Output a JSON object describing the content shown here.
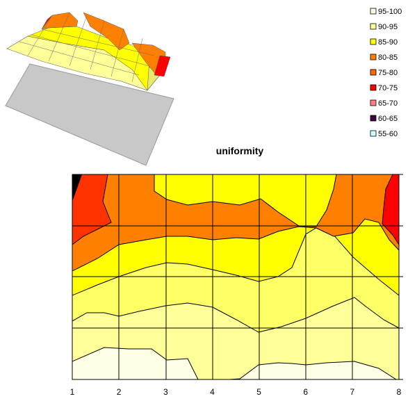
{
  "chart_data": [
    {
      "type": "surface",
      "title": "",
      "note": "3D surface rendering of the same uniformity data over a grey base plane"
    },
    {
      "type": "heatmap",
      "title": "uniformity",
      "x_ticks": [
        "1",
        "2",
        "3",
        "4",
        "5",
        "6",
        "7",
        "8"
      ],
      "xlim": [
        1,
        8
      ],
      "rows_shown": 5,
      "legend": [
        {
          "label": "95-100",
          "color": "#ffffe6"
        },
        {
          "label": "90-95",
          "color": "#ffff99"
        },
        {
          "label": "85-90",
          "color": "#ffff00"
        },
        {
          "label": "80-85",
          "color": "#ff8000"
        },
        {
          "label": "75-80",
          "color": "#ff6600"
        },
        {
          "label": "70-75",
          "color": "#ff0000"
        },
        {
          "label": "65-70",
          "color": "#ff8080"
        },
        {
          "label": "60-65",
          "color": "#400040"
        },
        {
          "label": "55-60",
          "color": "#ccffff"
        }
      ],
      "legend_position": "top-right",
      "values_by_column": {
        "x": [
          1,
          2,
          3,
          4,
          5,
          6,
          7,
          8
        ],
        "top_row": [
          58,
          80,
          88,
          88,
          84,
          90,
          82,
          72
        ],
        "row_2": [
          80,
          86,
          88,
          87,
          87,
          88,
          82,
          78
        ],
        "row_3": [
          88,
          91,
          91,
          91,
          90,
          91,
          89,
          86
        ],
        "row_4": [
          92,
          93,
          93,
          93,
          93,
          93,
          92,
          91
        ],
        "bottom_row": [
          96,
          95,
          95,
          97,
          94,
          94,
          94,
          93
        ]
      }
    }
  ]
}
